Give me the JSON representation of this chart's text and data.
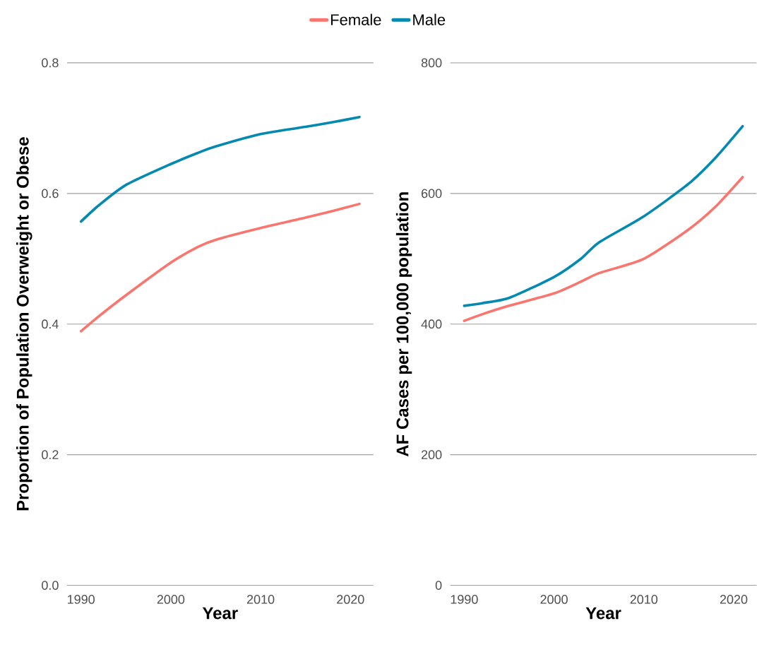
{
  "chart_data": [
    {
      "type": "line",
      "xlabel": "Year",
      "ylabel": "Proportion of Population Overweight or Obese",
      "x": [
        1990,
        1992,
        1995,
        2000,
        2003,
        2005,
        2010,
        2015,
        2018,
        2021
      ],
      "xlim": [
        1988.45,
        2022.55
      ],
      "ylim": [
        0,
        0.8
      ],
      "xticks": [
        1990,
        2000,
        2010,
        2020
      ],
      "yticks": [
        {
          "value": 0,
          "label": "0.0"
        },
        0.2,
        0.4,
        0.6,
        0.8
      ],
      "grid": "y",
      "legend": "top",
      "series": [
        {
          "name": "Female",
          "color": "#f8766d",
          "values": [
            0.389,
            0.412,
            0.444,
            0.494,
            0.518,
            0.529,
            0.547,
            0.563,
            0.573,
            0.584
          ]
        },
        {
          "name": "Male",
          "color": "#0489b1",
          "values": [
            0.557,
            0.582,
            0.613,
            0.645,
            0.662,
            0.672,
            0.691,
            0.702,
            0.709,
            0.717
          ]
        }
      ]
    },
    {
      "type": "line",
      "xlabel": "Year",
      "ylabel": "AF Cases per 100,000 population",
      "x": [
        1990,
        1992,
        1995,
        2000,
        2003,
        2005,
        2010,
        2015,
        2018,
        2021
      ],
      "xlim": [
        1988.45,
        2022.55
      ],
      "ylim": [
        0,
        800
      ],
      "xticks": [
        1990,
        2000,
        2010,
        2020
      ],
      "yticks": [
        0,
        200,
        400,
        600,
        800
      ],
      "grid": "y",
      "series": [
        {
          "color": "#f8766d",
          "values": [
            405,
            415,
            428,
            447,
            465,
            478,
            500,
            545,
            580,
            625
          ]
        },
        {
          "color": "#0489b1",
          "values": [
            428,
            432,
            440,
            472,
            500,
            525,
            565,
            615,
            655,
            703
          ]
        }
      ]
    }
  ]
}
